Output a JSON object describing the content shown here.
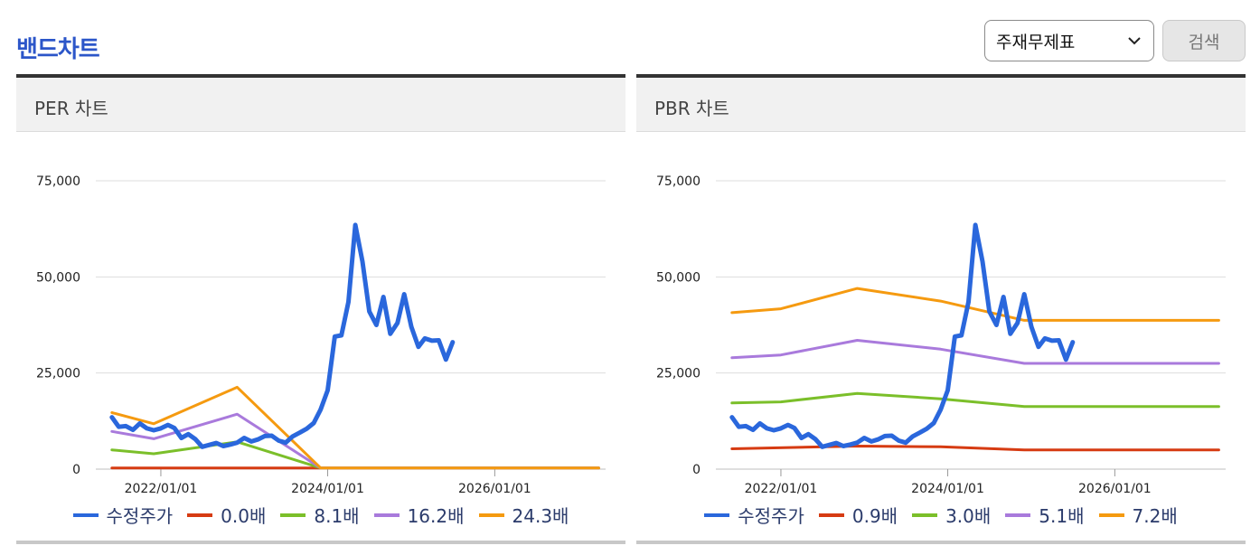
{
  "page": {
    "title": "밴드차트",
    "select_value": "주재무제표",
    "search_label": "검색"
  },
  "colors": {
    "price": "#2a67dc",
    "band1": "#d63b12",
    "band2": "#7bbf2a",
    "band3": "#a97adc",
    "band4": "#f59a10"
  },
  "chart_data": [
    {
      "type": "line",
      "title": "PER 차트",
      "ylim": [
        0,
        75000
      ],
      "yticks": [
        0,
        25000,
        50000,
        75000
      ],
      "ytick_labels": [
        "0",
        "25,000",
        "50,000",
        "75,000"
      ],
      "xlim": [
        "2021-05-01",
        "2027-05-01"
      ],
      "xtick_dates": [
        "2022-01-01",
        "2024-01-01",
        "2026-01-01"
      ],
      "xtick_labels": [
        "2022/01/01",
        "2024/01/01",
        "2026/01/01"
      ],
      "grid": true,
      "legend_position": "bottom",
      "series": [
        {
          "name": "수정주가",
          "color_key": "price",
          "points": [
            [
              "2021-06-01",
              13500
            ],
            [
              "2021-07-01",
              11000
            ],
            [
              "2021-08-01",
              11200
            ],
            [
              "2021-09-01",
              10200
            ],
            [
              "2021-10-01",
              11900
            ],
            [
              "2021-11-01",
              10600
            ],
            [
              "2021-12-01",
              10100
            ],
            [
              "2022-01-01",
              10600
            ],
            [
              "2022-02-01",
              11500
            ],
            [
              "2022-03-01",
              10700
            ],
            [
              "2022-04-01",
              8100
            ],
            [
              "2022-05-01",
              9100
            ],
            [
              "2022-06-01",
              7800
            ],
            [
              "2022-07-01",
              5800
            ],
            [
              "2022-08-01",
              6300
            ],
            [
              "2022-09-01",
              6800
            ],
            [
              "2022-10-01",
              6000
            ],
            [
              "2022-11-01",
              6400
            ],
            [
              "2022-12-01",
              6900
            ],
            [
              "2023-01-01",
              8100
            ],
            [
              "2023-02-01",
              7200
            ],
            [
              "2023-03-01",
              7700
            ],
            [
              "2023-04-01",
              8600
            ],
            [
              "2023-05-01",
              8700
            ],
            [
              "2023-06-01",
              7400
            ],
            [
              "2023-07-01",
              6900
            ],
            [
              "2023-08-01",
              8500
            ],
            [
              "2023-09-01",
              9500
            ],
            [
              "2023-10-01",
              10500
            ],
            [
              "2023-11-01",
              12000
            ],
            [
              "2023-12-01",
              15500
            ],
            [
              "2024-01-01",
              20500
            ],
            [
              "2024-02-01",
              34500
            ],
            [
              "2024-03-01",
              34800
            ],
            [
              "2024-04-01",
              43500
            ],
            [
              "2024-05-01",
              63500
            ],
            [
              "2024-06-01",
              54000
            ],
            [
              "2024-07-01",
              41000
            ],
            [
              "2024-08-01",
              37500
            ],
            [
              "2024-09-01",
              44800
            ],
            [
              "2024-10-01",
              35200
            ],
            [
              "2024-11-01",
              38000
            ],
            [
              "2024-12-01",
              45500
            ],
            [
              "2025-01-01",
              37000
            ],
            [
              "2025-02-01",
              31800
            ],
            [
              "2025-03-01",
              34000
            ],
            [
              "2025-04-01",
              33400
            ],
            [
              "2025-05-01",
              33500
            ],
            [
              "2025-06-01",
              28500
            ],
            [
              "2025-07-01",
              33000
            ]
          ]
        },
        {
          "name": "0.0배",
          "color_key": "band1",
          "points": [
            [
              "2021-06-01",
              300
            ],
            [
              "2023-06-01",
              300
            ],
            [
              "2024-01-01",
              300
            ],
            [
              "2027-04-01",
              300
            ]
          ]
        },
        {
          "name": "8.1배",
          "color_key": "band2",
          "points": [
            [
              "2021-06-01",
              5000
            ],
            [
              "2021-12-01",
              4000
            ],
            [
              "2022-12-01",
              7100
            ],
            [
              "2023-12-01",
              300
            ],
            [
              "2027-04-01",
              300
            ]
          ]
        },
        {
          "name": "16.2배",
          "color_key": "band3",
          "points": [
            [
              "2021-06-01",
              9800
            ],
            [
              "2021-12-01",
              7900
            ],
            [
              "2022-12-01",
              14300
            ],
            [
              "2023-12-01",
              300
            ],
            [
              "2027-04-01",
              300
            ]
          ]
        },
        {
          "name": "24.3배",
          "color_key": "band4",
          "points": [
            [
              "2021-06-01",
              14700
            ],
            [
              "2021-12-01",
              11800
            ],
            [
              "2022-12-01",
              21300
            ],
            [
              "2023-12-01",
              300
            ],
            [
              "2027-04-01",
              300
            ]
          ]
        }
      ]
    },
    {
      "type": "line",
      "title": "PBR 차트",
      "ylim": [
        0,
        75000
      ],
      "yticks": [
        0,
        25000,
        50000,
        75000
      ],
      "ytick_labels": [
        "0",
        "25,000",
        "50,000",
        "75,000"
      ],
      "xlim": [
        "2021-05-01",
        "2027-05-01"
      ],
      "xtick_dates": [
        "2022-01-01",
        "2024-01-01",
        "2026-01-01"
      ],
      "xtick_labels": [
        "2022/01/01",
        "2024/01/01",
        "2026/01/01"
      ],
      "grid": true,
      "legend_position": "bottom",
      "series": [
        {
          "name": "수정주가",
          "color_key": "price",
          "points": [
            [
              "2021-06-01",
              13500
            ],
            [
              "2021-07-01",
              11000
            ],
            [
              "2021-08-01",
              11200
            ],
            [
              "2021-09-01",
              10200
            ],
            [
              "2021-10-01",
              11900
            ],
            [
              "2021-11-01",
              10600
            ],
            [
              "2021-12-01",
              10100
            ],
            [
              "2022-01-01",
              10600
            ],
            [
              "2022-02-01",
              11500
            ],
            [
              "2022-03-01",
              10700
            ],
            [
              "2022-04-01",
              8100
            ],
            [
              "2022-05-01",
              9100
            ],
            [
              "2022-06-01",
              7800
            ],
            [
              "2022-07-01",
              5800
            ],
            [
              "2022-08-01",
              6300
            ],
            [
              "2022-09-01",
              6800
            ],
            [
              "2022-10-01",
              6000
            ],
            [
              "2022-11-01",
              6400
            ],
            [
              "2022-12-01",
              6900
            ],
            [
              "2023-01-01",
              8100
            ],
            [
              "2023-02-01",
              7200
            ],
            [
              "2023-03-01",
              7700
            ],
            [
              "2023-04-01",
              8600
            ],
            [
              "2023-05-01",
              8700
            ],
            [
              "2023-06-01",
              7400
            ],
            [
              "2023-07-01",
              6900
            ],
            [
              "2023-08-01",
              8500
            ],
            [
              "2023-09-01",
              9500
            ],
            [
              "2023-10-01",
              10500
            ],
            [
              "2023-11-01",
              12000
            ],
            [
              "2023-12-01",
              15500
            ],
            [
              "2024-01-01",
              20500
            ],
            [
              "2024-02-01",
              34500
            ],
            [
              "2024-03-01",
              34800
            ],
            [
              "2024-04-01",
              43500
            ],
            [
              "2024-05-01",
              63500
            ],
            [
              "2024-06-01",
              54000
            ],
            [
              "2024-07-01",
              41000
            ],
            [
              "2024-08-01",
              37500
            ],
            [
              "2024-09-01",
              44800
            ],
            [
              "2024-10-01",
              35200
            ],
            [
              "2024-11-01",
              38000
            ],
            [
              "2024-12-01",
              45500
            ],
            [
              "2025-01-01",
              37000
            ],
            [
              "2025-02-01",
              31800
            ],
            [
              "2025-03-01",
              34000
            ],
            [
              "2025-04-01",
              33400
            ],
            [
              "2025-05-01",
              33500
            ],
            [
              "2025-06-01",
              28500
            ],
            [
              "2025-07-01",
              33000
            ]
          ]
        },
        {
          "name": "0.9배",
          "color_key": "band1",
          "points": [
            [
              "2021-06-01",
              5300
            ],
            [
              "2022-12-01",
              6000
            ],
            [
              "2023-12-01",
              5800
            ],
            [
              "2024-12-01",
              5000
            ],
            [
              "2027-04-01",
              5000
            ]
          ]
        },
        {
          "name": "3.0배",
          "color_key": "band2",
          "points": [
            [
              "2021-06-01",
              17200
            ],
            [
              "2022-01-01",
              17500
            ],
            [
              "2022-12-01",
              19700
            ],
            [
              "2023-12-01",
              18300
            ],
            [
              "2024-12-01",
              16300
            ],
            [
              "2027-04-01",
              16300
            ]
          ]
        },
        {
          "name": "5.1배",
          "color_key": "band3",
          "points": [
            [
              "2021-06-01",
              29000
            ],
            [
              "2022-01-01",
              29700
            ],
            [
              "2022-12-01",
              33500
            ],
            [
              "2023-12-01",
              31200
            ],
            [
              "2024-12-01",
              27500
            ],
            [
              "2027-04-01",
              27500
            ]
          ]
        },
        {
          "name": "7.2배",
          "color_key": "band4",
          "points": [
            [
              "2021-06-01",
              40700
            ],
            [
              "2022-01-01",
              41700
            ],
            [
              "2022-12-01",
              47000
            ],
            [
              "2023-12-01",
              43700
            ],
            [
              "2024-12-01",
              38700
            ],
            [
              "2027-04-01",
              38700
            ]
          ]
        }
      ]
    }
  ]
}
